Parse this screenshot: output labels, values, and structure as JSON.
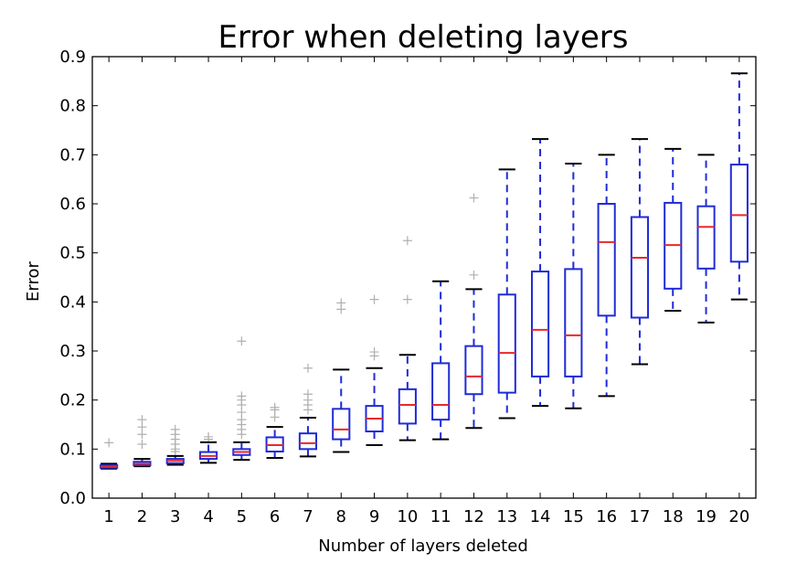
{
  "chart_data": {
    "type": "box",
    "title": "Error when deleting layers",
    "xlabel": "Number of layers deleted",
    "ylabel": "Error",
    "ylim": [
      0.0,
      0.9
    ],
    "yticks": [
      "0.0",
      "0.1",
      "0.2",
      "0.3",
      "0.4",
      "0.5",
      "0.6",
      "0.7",
      "0.8",
      "0.9"
    ],
    "categories": [
      "1",
      "2",
      "3",
      "4",
      "5",
      "6",
      "7",
      "8",
      "9",
      "10",
      "11",
      "12",
      "13",
      "14",
      "15",
      "16",
      "17",
      "18",
      "19",
      "20"
    ],
    "grid": false,
    "colors": {
      "box": "#1f2bd6",
      "median": "#e8282e",
      "cap": "#000000",
      "outlier": "#b0b0b0"
    },
    "boxes": [
      {
        "whislo": 0.06,
        "q1": 0.062,
        "med": 0.064,
        "q3": 0.067,
        "whishi": 0.07,
        "fliers": [
          0.113
        ]
      },
      {
        "whislo": 0.065,
        "q1": 0.067,
        "med": 0.07,
        "q3": 0.074,
        "whishi": 0.08,
        "fliers": [
          0.11,
          0.13,
          0.145,
          0.16
        ]
      },
      {
        "whislo": 0.068,
        "q1": 0.071,
        "med": 0.076,
        "q3": 0.08,
        "whishi": 0.086,
        "fliers": [
          0.095,
          0.1,
          0.11,
          0.12,
          0.13,
          0.14
        ]
      },
      {
        "whislo": 0.072,
        "q1": 0.08,
        "med": 0.086,
        "q3": 0.094,
        "whishi": 0.114,
        "fliers": [
          0.12,
          0.125
        ]
      },
      {
        "whislo": 0.078,
        "q1": 0.088,
        "med": 0.094,
        "q3": 0.1,
        "whishi": 0.114,
        "fliers": [
          0.13,
          0.14,
          0.15,
          0.16,
          0.175,
          0.19,
          0.2,
          0.208,
          0.32
        ]
      },
      {
        "whislo": 0.082,
        "q1": 0.095,
        "med": 0.108,
        "q3": 0.124,
        "whishi": 0.145,
        "fliers": [
          0.165,
          0.18,
          0.185
        ]
      },
      {
        "whislo": 0.085,
        "q1": 0.1,
        "med": 0.112,
        "q3": 0.132,
        "whishi": 0.164,
        "fliers": [
          0.18,
          0.19,
          0.2,
          0.212,
          0.265
        ]
      },
      {
        "whislo": 0.094,
        "q1": 0.12,
        "med": 0.14,
        "q3": 0.182,
        "whishi": 0.262,
        "fliers": [
          0.385,
          0.398
        ]
      },
      {
        "whislo": 0.108,
        "q1": 0.136,
        "med": 0.162,
        "q3": 0.188,
        "whishi": 0.265,
        "fliers": [
          0.29,
          0.298,
          0.405
        ]
      },
      {
        "whislo": 0.118,
        "q1": 0.152,
        "med": 0.19,
        "q3": 0.222,
        "whishi": 0.292,
        "fliers": [
          0.405,
          0.525
        ]
      },
      {
        "whislo": 0.12,
        "q1": 0.16,
        "med": 0.19,
        "q3": 0.275,
        "whishi": 0.442,
        "fliers": []
      },
      {
        "whislo": 0.143,
        "q1": 0.212,
        "med": 0.248,
        "q3": 0.31,
        "whishi": 0.426,
        "fliers": [
          0.455,
          0.612
        ]
      },
      {
        "whislo": 0.163,
        "q1": 0.215,
        "med": 0.296,
        "q3": 0.415,
        "whishi": 0.67,
        "fliers": []
      },
      {
        "whislo": 0.188,
        "q1": 0.248,
        "med": 0.343,
        "q3": 0.462,
        "whishi": 0.732,
        "fliers": []
      },
      {
        "whislo": 0.183,
        "q1": 0.248,
        "med": 0.332,
        "q3": 0.467,
        "whishi": 0.682,
        "fliers": []
      },
      {
        "whislo": 0.208,
        "q1": 0.372,
        "med": 0.522,
        "q3": 0.6,
        "whishi": 0.7,
        "fliers": []
      },
      {
        "whislo": 0.273,
        "q1": 0.368,
        "med": 0.49,
        "q3": 0.573,
        "whishi": 0.732,
        "fliers": []
      },
      {
        "whislo": 0.382,
        "q1": 0.427,
        "med": 0.516,
        "q3": 0.602,
        "whishi": 0.712,
        "fliers": []
      },
      {
        "whislo": 0.358,
        "q1": 0.468,
        "med": 0.553,
        "q3": 0.595,
        "whishi": 0.7,
        "fliers": []
      },
      {
        "whislo": 0.405,
        "q1": 0.482,
        "med": 0.577,
        "q3": 0.68,
        "whishi": 0.866,
        "fliers": []
      }
    ]
  }
}
